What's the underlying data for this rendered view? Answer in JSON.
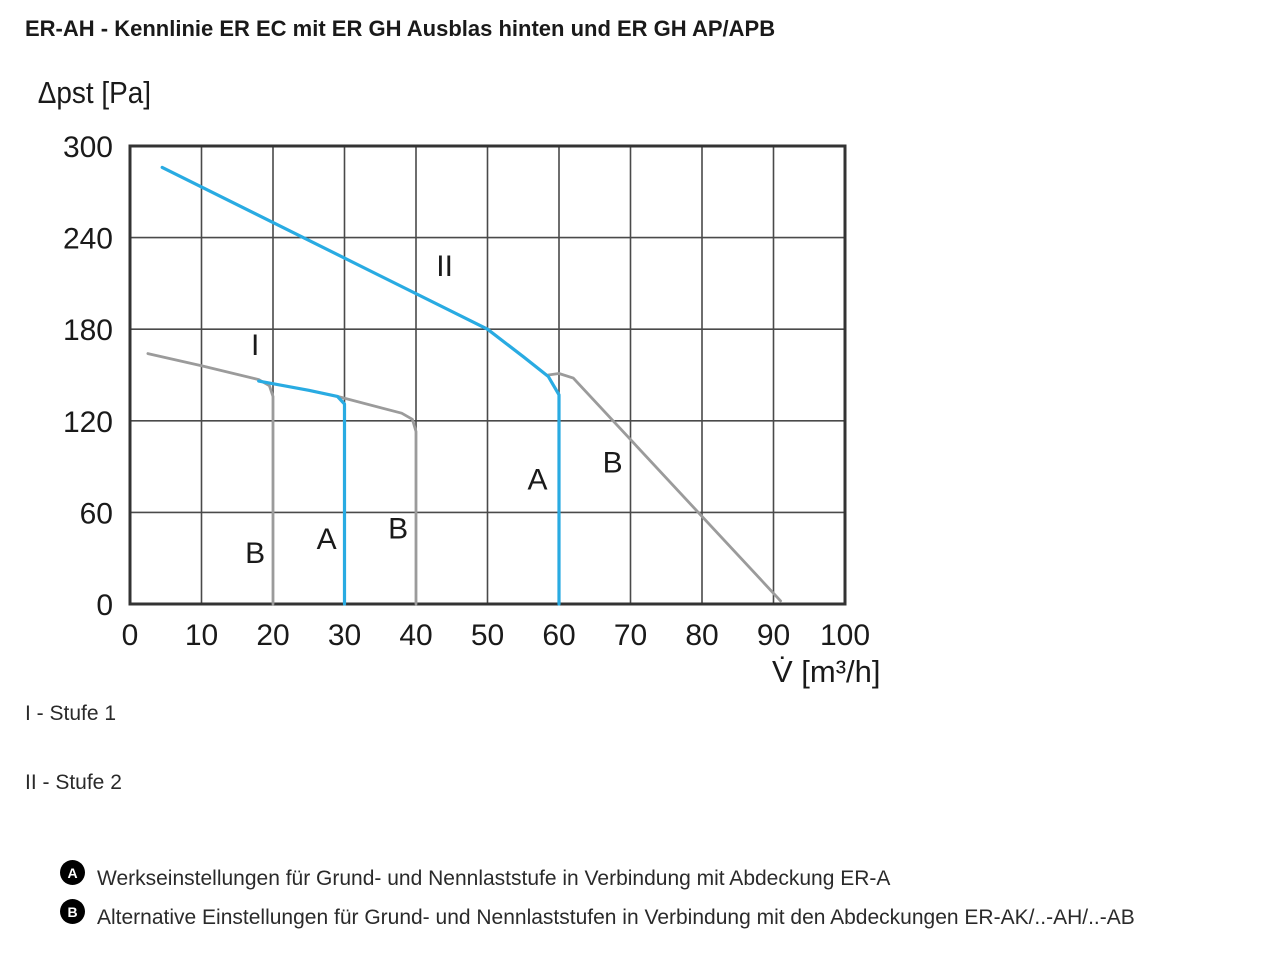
{
  "title": "ER-AH - Kennlinie ER EC mit ER GH Ausblas hinten und ER GH AP/APB",
  "notes": [
    "I - Stufe 1",
    "II - Stufe 2"
  ],
  "legend": [
    {
      "badge": "A",
      "text": "Werkseinstellungen für Grund- und Nennlaststufe in Verbindung mit Abdeckung ER-A"
    },
    {
      "badge": "B",
      "text": "Alternative Einstellungen für Grund- und Nennlaststufen in Verbindung mit den Abdeckungen ER-AK/..-AH/..-AB"
    }
  ],
  "colors": {
    "blue": "#29ABE2",
    "gray": "#9B9B9B",
    "grid": "#4a4a4a"
  },
  "chart_data": {
    "type": "line",
    "ylabel": "Δpst [Pa]",
    "xlabel": "V̇ [m³/h]",
    "xlim": [
      0,
      100
    ],
    "ylim": [
      0,
      300
    ],
    "xticks": [
      0,
      10,
      20,
      30,
      40,
      50,
      60,
      70,
      80,
      90,
      100
    ],
    "yticks": [
      0,
      60,
      120,
      180,
      240,
      300
    ],
    "grid": true,
    "series": [
      {
        "name": "I",
        "color": "gray",
        "points": [
          [
            2.5,
            164
          ],
          [
            10,
            156
          ],
          [
            18,
            147
          ],
          [
            19.5,
            143
          ],
          [
            20,
            136
          ],
          [
            20,
            0
          ]
        ]
      },
      {
        "name": "I",
        "color": "blue",
        "points": [
          [
            18,
            146
          ],
          [
            25,
            140
          ],
          [
            29,
            136
          ],
          [
            30,
            131
          ],
          [
            30,
            0
          ]
        ]
      },
      {
        "name": "I",
        "color": "gray",
        "points": [
          [
            29,
            136
          ],
          [
            38,
            125
          ],
          [
            39.5,
            121
          ],
          [
            40,
            113
          ],
          [
            40,
            0
          ]
        ]
      },
      {
        "name": "II",
        "color": "blue",
        "points": [
          [
            4.5,
            286
          ],
          [
            50,
            180
          ],
          [
            55,
            162
          ],
          [
            58.5,
            149
          ],
          [
            60,
            137
          ],
          [
            60,
            0
          ]
        ]
      },
      {
        "name": "II",
        "color": "gray",
        "points": [
          [
            58.5,
            150
          ],
          [
            60,
            151
          ],
          [
            62,
            148
          ],
          [
            91,
            2
          ]
        ]
      }
    ],
    "annotations": [
      {
        "text": "II",
        "x": 44,
        "y": 215
      },
      {
        "text": "I",
        "x": 17.5,
        "y": 163
      },
      {
        "text": "B",
        "x": 17.5,
        "y": 27
      },
      {
        "text": "A",
        "x": 27.5,
        "y": 36
      },
      {
        "text": "B",
        "x": 37.5,
        "y": 43
      },
      {
        "text": "A",
        "x": 57,
        "y": 75
      },
      {
        "text": "B",
        "x": 67.5,
        "y": 86
      }
    ]
  }
}
